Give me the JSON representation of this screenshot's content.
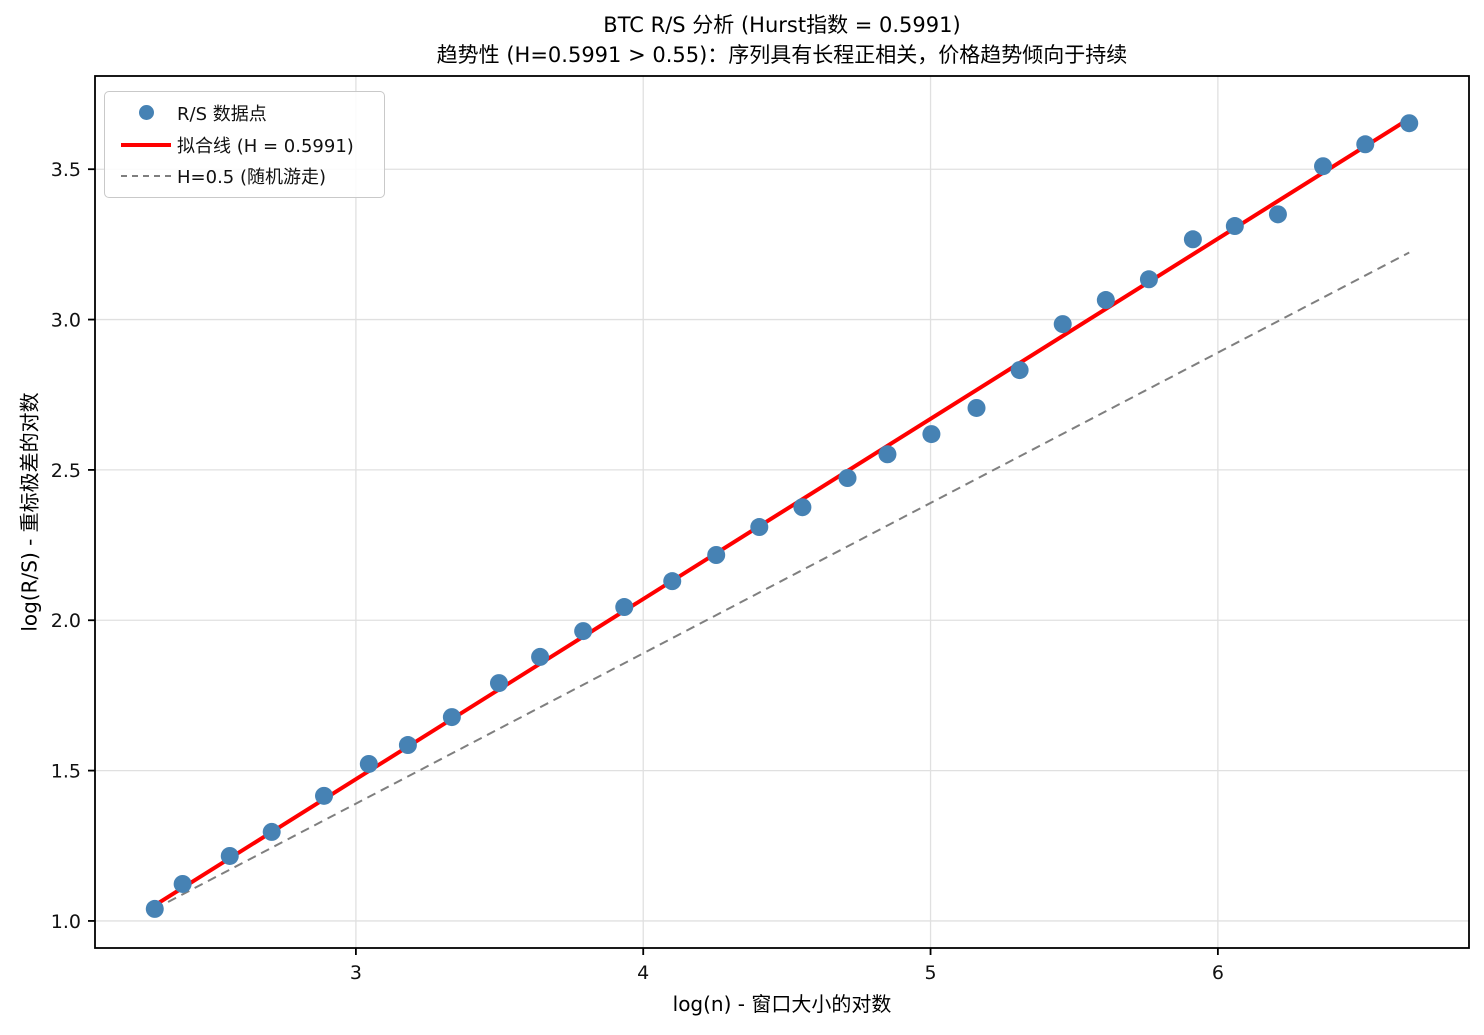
{
  "chart_data": {
    "type": "scatter",
    "title": "BTC R/S 分析 (Hurst指数 = 0.5991)",
    "subtitle": "趋势性 (H=0.5991 > 0.55)：序列具有长程正相关，价格趋势倾向于持续",
    "xlabel": "log(n) - 窗口大小的对数",
    "ylabel": "log(R/S) - 重标极差的对数",
    "hurst_exponent": 0.5991,
    "xlim": [
      2.092,
      6.874
    ],
    "ylim": [
      0.91,
      3.81
    ],
    "xticks": [
      3,
      4,
      5,
      6
    ],
    "xtick_labels": [
      "3",
      "4",
      "5",
      "6"
    ],
    "yticks": [
      1.0,
      1.5,
      2.0,
      2.5,
      3.0,
      3.5
    ],
    "ytick_labels": [
      "1.0",
      "1.5",
      "2.0",
      "2.5",
      "3.0",
      "3.5"
    ],
    "grid": true,
    "legend_position": "upper left",
    "colors": {
      "scatter": "#4682b4",
      "fit_line": "#ff0000",
      "random_walk_line": "#7f7f7f",
      "grid": "#e0e0e0",
      "spine": "#000000"
    },
    "series": [
      {
        "name": "R/S 数据点",
        "kind": "scatter",
        "color": "#4682b4",
        "marker_radius": 9,
        "points": [
          [
            2.3,
            1.04
          ],
          [
            2.397,
            1.123
          ],
          [
            2.561,
            1.216
          ],
          [
            2.707,
            1.296
          ],
          [
            2.889,
            1.416
          ],
          [
            3.045,
            1.522
          ],
          [
            3.181,
            1.585
          ],
          [
            3.334,
            1.678
          ],
          [
            3.498,
            1.791
          ],
          [
            3.641,
            1.878
          ],
          [
            3.791,
            1.964
          ],
          [
            3.934,
            2.044
          ],
          [
            4.101,
            2.13
          ],
          [
            4.254,
            2.217
          ],
          [
            4.404,
            2.31
          ],
          [
            4.554,
            2.376
          ],
          [
            4.711,
            2.473
          ],
          [
            4.85,
            2.552
          ],
          [
            5.003,
            2.619
          ],
          [
            5.16,
            2.706
          ],
          [
            5.31,
            2.832
          ],
          [
            5.46,
            2.985
          ],
          [
            5.61,
            3.065
          ],
          [
            5.76,
            3.134
          ],
          [
            5.913,
            3.267
          ],
          [
            6.059,
            3.311
          ],
          [
            6.209,
            3.35
          ],
          [
            6.366,
            3.51
          ],
          [
            6.513,
            3.583
          ],
          [
            6.666,
            3.653
          ]
        ]
      },
      {
        "name": "拟合线 (H = 0.5991)",
        "kind": "line",
        "color": "#ff0000",
        "width": 4,
        "slope": 0.5991,
        "intercept": -0.326,
        "points": [
          [
            2.3,
            1.052
          ],
          [
            6.666,
            3.668
          ]
        ]
      },
      {
        "name": "H=0.5 (随机游走)",
        "kind": "dashed-line",
        "color": "#7f7f7f",
        "width": 2,
        "slope": 0.5,
        "points": [
          [
            2.3,
            1.04
          ],
          [
            6.666,
            3.223
          ]
        ]
      }
    ],
    "legend": [
      {
        "label": "R/S 数据点",
        "swatch": "dot",
        "color": "#4682b4"
      },
      {
        "label": "拟合线 (H = 0.5991)",
        "swatch": "line",
        "color": "#ff0000"
      },
      {
        "label": "H=0.5 (随机游走)",
        "swatch": "dash",
        "color": "#7f7f7f"
      }
    ]
  }
}
